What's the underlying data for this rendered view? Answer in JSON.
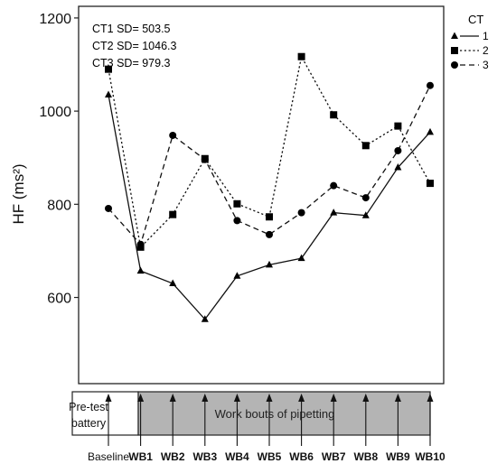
{
  "chart_data": {
    "type": "line",
    "title": "",
    "xlabel": "",
    "ylabel": "HF (ms²)",
    "categories": [
      "Baseline",
      "WB1",
      "WB2",
      "WB3",
      "WB4",
      "WB5",
      "WB6",
      "WB7",
      "WB8",
      "WB9",
      "WB10"
    ],
    "yticks": [
      600,
      800,
      1000,
      1200
    ],
    "ylim": [
      415,
      1225
    ],
    "grid": false,
    "legend": {
      "title": "CT",
      "position": "right"
    },
    "annotations": [
      "CT1 SD= 503.5",
      "CT2 SD= 1046.3",
      "CT3 SD= 979.3"
    ],
    "series": [
      {
        "name": "1",
        "line_style": "solid",
        "marker": "triangle",
        "values": [
          1035,
          657,
          630,
          553,
          646,
          670,
          684,
          782,
          776,
          879,
          955
        ]
      },
      {
        "name": "2",
        "line_style": "dotted",
        "marker": "square",
        "values": [
          1090,
          708,
          778,
          898,
          801,
          773,
          1117,
          992,
          926,
          968,
          845
        ]
      },
      {
        "name": "3",
        "line_style": "dashed",
        "marker": "circle",
        "values": [
          791,
          714,
          948,
          896,
          765,
          735,
          782,
          840,
          814,
          915,
          1055
        ]
      }
    ],
    "timeline": {
      "baseline_label": "Pre-test battery",
      "work_label": "Work bouts of pipetting"
    }
  }
}
